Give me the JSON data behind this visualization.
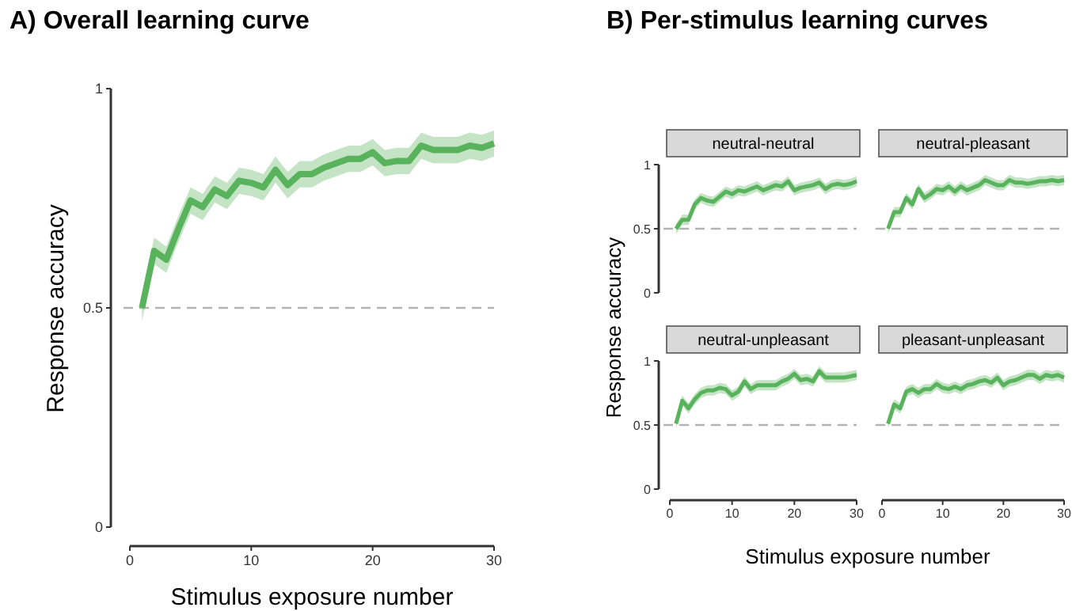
{
  "chart_data": [
    {
      "type": "line",
      "title": "A) Overall learning curve",
      "xlabel": "Stimulus exposure number",
      "ylabel": "Response accuracy",
      "x": [
        1,
        2,
        3,
        4,
        5,
        6,
        7,
        8,
        9,
        10,
        11,
        12,
        13,
        14,
        15,
        16,
        17,
        18,
        19,
        20,
        21,
        22,
        23,
        24,
        25,
        26,
        27,
        28,
        29,
        30
      ],
      "xlim": [
        0,
        30
      ],
      "ylim": [
        0,
        1
      ],
      "xticks": [
        0,
        10,
        20,
        30
      ],
      "yticks": [
        0,
        0.5,
        1
      ],
      "ref_lines": [
        {
          "axis": "y",
          "value": 0.5,
          "color": "#b3b3b3",
          "line_style": "dashed"
        }
      ],
      "series": [
        {
          "color": "#59b25c",
          "values": [
            0.5,
            0.63,
            0.61,
            0.68,
            0.745,
            0.73,
            0.77,
            0.755,
            0.79,
            0.785,
            0.775,
            0.815,
            0.78,
            0.805,
            0.805,
            0.82,
            0.83,
            0.84,
            0.84,
            0.855,
            0.83,
            0.835,
            0.835,
            0.87,
            0.86,
            0.86,
            0.86,
            0.87,
            0.865,
            0.875
          ],
          "lower": [
            0.47,
            0.6,
            0.58,
            0.65,
            0.715,
            0.7,
            0.74,
            0.725,
            0.76,
            0.755,
            0.745,
            0.785,
            0.75,
            0.775,
            0.775,
            0.79,
            0.8,
            0.81,
            0.81,
            0.825,
            0.8,
            0.805,
            0.805,
            0.84,
            0.83,
            0.83,
            0.83,
            0.84,
            0.835,
            0.845
          ],
          "upper": [
            0.53,
            0.66,
            0.64,
            0.71,
            0.775,
            0.76,
            0.8,
            0.785,
            0.82,
            0.815,
            0.805,
            0.845,
            0.81,
            0.835,
            0.835,
            0.85,
            0.86,
            0.87,
            0.87,
            0.885,
            0.86,
            0.865,
            0.865,
            0.9,
            0.89,
            0.89,
            0.89,
            0.9,
            0.895,
            0.905
          ]
        }
      ]
    },
    {
      "type": "line",
      "title": "B) Per-stimulus learning curves",
      "subtitle": "neutral-neutral",
      "ylabel": "Response accuracy",
      "tick_labels": "y",
      "x": [
        1,
        2,
        3,
        4,
        5,
        6,
        7,
        8,
        9,
        10,
        11,
        12,
        13,
        14,
        15,
        16,
        17,
        18,
        19,
        20,
        21,
        22,
        23,
        24,
        25,
        26,
        27,
        28,
        29,
        30
      ],
      "xlim": [
        0,
        30
      ],
      "ylim": [
        0,
        1
      ],
      "yticks": [
        0,
        0.5,
        1
      ],
      "ref_lines": [
        {
          "axis": "y",
          "value": 0.5,
          "color": "#b3b3b3",
          "line_style": "dashed"
        }
      ],
      "series": [
        {
          "color": "#59b25c",
          "values": [
            0.5,
            0.57,
            0.57,
            0.69,
            0.74,
            0.72,
            0.71,
            0.75,
            0.79,
            0.77,
            0.8,
            0.79,
            0.81,
            0.83,
            0.8,
            0.82,
            0.84,
            0.83,
            0.87,
            0.8,
            0.82,
            0.83,
            0.84,
            0.86,
            0.81,
            0.84,
            0.85,
            0.84,
            0.85,
            0.87
          ],
          "lower": [
            0.46,
            0.53,
            0.53,
            0.65,
            0.7,
            0.68,
            0.67,
            0.71,
            0.75,
            0.73,
            0.76,
            0.75,
            0.77,
            0.79,
            0.76,
            0.78,
            0.8,
            0.79,
            0.83,
            0.76,
            0.78,
            0.79,
            0.8,
            0.82,
            0.77,
            0.8,
            0.81,
            0.8,
            0.81,
            0.83
          ],
          "upper": [
            0.54,
            0.61,
            0.61,
            0.73,
            0.78,
            0.76,
            0.75,
            0.79,
            0.83,
            0.81,
            0.84,
            0.83,
            0.85,
            0.87,
            0.84,
            0.86,
            0.88,
            0.87,
            0.91,
            0.84,
            0.86,
            0.87,
            0.88,
            0.9,
            0.85,
            0.88,
            0.89,
            0.88,
            0.89,
            0.91
          ]
        }
      ]
    },
    {
      "type": "line",
      "subtitle": "neutral-pleasant",
      "tick_labels": false,
      "x": [
        1,
        2,
        3,
        4,
        5,
        6,
        7,
        8,
        9,
        10,
        11,
        12,
        13,
        14,
        15,
        16,
        17,
        18,
        19,
        20,
        21,
        22,
        23,
        24,
        25,
        26,
        27,
        28,
        29,
        30
      ],
      "xlim": [
        0,
        30
      ],
      "ylim": [
        0,
        1
      ],
      "ref_lines": [
        {
          "axis": "y",
          "value": 0.5,
          "color": "#b3b3b3",
          "line_style": "dashed"
        }
      ],
      "series": [
        {
          "color": "#59b25c",
          "values": [
            0.5,
            0.63,
            0.63,
            0.74,
            0.69,
            0.81,
            0.74,
            0.77,
            0.81,
            0.8,
            0.83,
            0.79,
            0.83,
            0.8,
            0.82,
            0.84,
            0.88,
            0.86,
            0.84,
            0.84,
            0.88,
            0.86,
            0.86,
            0.85,
            0.86,
            0.87,
            0.87,
            0.88,
            0.87,
            0.88
          ],
          "lower": [
            0.46,
            0.59,
            0.59,
            0.7,
            0.65,
            0.77,
            0.7,
            0.73,
            0.77,
            0.76,
            0.79,
            0.75,
            0.79,
            0.76,
            0.78,
            0.8,
            0.84,
            0.82,
            0.8,
            0.8,
            0.84,
            0.82,
            0.82,
            0.81,
            0.82,
            0.83,
            0.83,
            0.84,
            0.83,
            0.84
          ],
          "upper": [
            0.54,
            0.67,
            0.67,
            0.78,
            0.73,
            0.85,
            0.78,
            0.81,
            0.85,
            0.84,
            0.87,
            0.83,
            0.87,
            0.84,
            0.86,
            0.88,
            0.92,
            0.9,
            0.88,
            0.88,
            0.92,
            0.9,
            0.9,
            0.89,
            0.9,
            0.91,
            0.91,
            0.92,
            0.91,
            0.92
          ]
        }
      ]
    },
    {
      "type": "line",
      "subtitle": "neutral-unpleasant",
      "xlabel": "Stimulus exposure number",
      "x": [
        1,
        2,
        3,
        4,
        5,
        6,
        7,
        8,
        9,
        10,
        11,
        12,
        13,
        14,
        15,
        16,
        17,
        18,
        19,
        20,
        21,
        22,
        23,
        24,
        25,
        26,
        27,
        28,
        29,
        30
      ],
      "xlim": [
        0,
        30
      ],
      "ylim": [
        0,
        1
      ],
      "xticks": [
        0,
        10,
        20,
        30
      ],
      "yticks": [
        0,
        0.5,
        1
      ],
      "ref_lines": [
        {
          "axis": "y",
          "value": 0.5,
          "color": "#b3b3b3",
          "line_style": "dashed"
        }
      ],
      "series": [
        {
          "color": "#59b25c",
          "values": [
            0.51,
            0.69,
            0.63,
            0.7,
            0.75,
            0.77,
            0.77,
            0.79,
            0.78,
            0.73,
            0.76,
            0.84,
            0.78,
            0.81,
            0.81,
            0.81,
            0.81,
            0.84,
            0.86,
            0.9,
            0.85,
            0.86,
            0.84,
            0.92,
            0.87,
            0.87,
            0.87,
            0.87,
            0.88,
            0.89
          ],
          "lower": [
            0.47,
            0.65,
            0.59,
            0.66,
            0.71,
            0.73,
            0.73,
            0.75,
            0.74,
            0.69,
            0.72,
            0.8,
            0.74,
            0.77,
            0.77,
            0.77,
            0.77,
            0.8,
            0.82,
            0.86,
            0.81,
            0.82,
            0.8,
            0.88,
            0.83,
            0.83,
            0.83,
            0.83,
            0.84,
            0.85
          ],
          "upper": [
            0.55,
            0.73,
            0.67,
            0.74,
            0.79,
            0.81,
            0.81,
            0.83,
            0.82,
            0.77,
            0.8,
            0.88,
            0.82,
            0.85,
            0.85,
            0.85,
            0.85,
            0.88,
            0.9,
            0.94,
            0.89,
            0.9,
            0.88,
            0.96,
            0.91,
            0.91,
            0.91,
            0.91,
            0.92,
            0.93
          ]
        }
      ]
    },
    {
      "type": "line",
      "subtitle": "pleasant-unpleasant",
      "tick_labels": "x",
      "x": [
        1,
        2,
        3,
        4,
        5,
        6,
        7,
        8,
        9,
        10,
        11,
        12,
        13,
        14,
        15,
        16,
        17,
        18,
        19,
        20,
        21,
        22,
        23,
        24,
        25,
        26,
        27,
        28,
        29,
        30
      ],
      "xlim": [
        0,
        30
      ],
      "ylim": [
        0,
        1
      ],
      "xticks": [
        0,
        10,
        20,
        30
      ],
      "ref_lines": [
        {
          "axis": "y",
          "value": 0.5,
          "color": "#b3b3b3",
          "line_style": "dashed"
        }
      ],
      "series": [
        {
          "color": "#59b25c",
          "values": [
            0.51,
            0.66,
            0.63,
            0.76,
            0.78,
            0.75,
            0.78,
            0.78,
            0.82,
            0.79,
            0.78,
            0.8,
            0.78,
            0.81,
            0.82,
            0.84,
            0.85,
            0.83,
            0.87,
            0.81,
            0.84,
            0.85,
            0.87,
            0.89,
            0.89,
            0.86,
            0.89,
            0.88,
            0.89,
            0.87
          ],
          "lower": [
            0.47,
            0.62,
            0.59,
            0.72,
            0.74,
            0.71,
            0.74,
            0.74,
            0.78,
            0.75,
            0.74,
            0.76,
            0.74,
            0.77,
            0.78,
            0.8,
            0.81,
            0.79,
            0.83,
            0.77,
            0.8,
            0.81,
            0.83,
            0.85,
            0.85,
            0.82,
            0.85,
            0.84,
            0.85,
            0.83
          ],
          "upper": [
            0.55,
            0.7,
            0.67,
            0.8,
            0.82,
            0.79,
            0.82,
            0.82,
            0.86,
            0.83,
            0.82,
            0.84,
            0.82,
            0.85,
            0.86,
            0.88,
            0.89,
            0.87,
            0.91,
            0.85,
            0.88,
            0.89,
            0.91,
            0.93,
            0.93,
            0.9,
            0.93,
            0.92,
            0.93,
            0.91
          ]
        }
      ]
    }
  ]
}
